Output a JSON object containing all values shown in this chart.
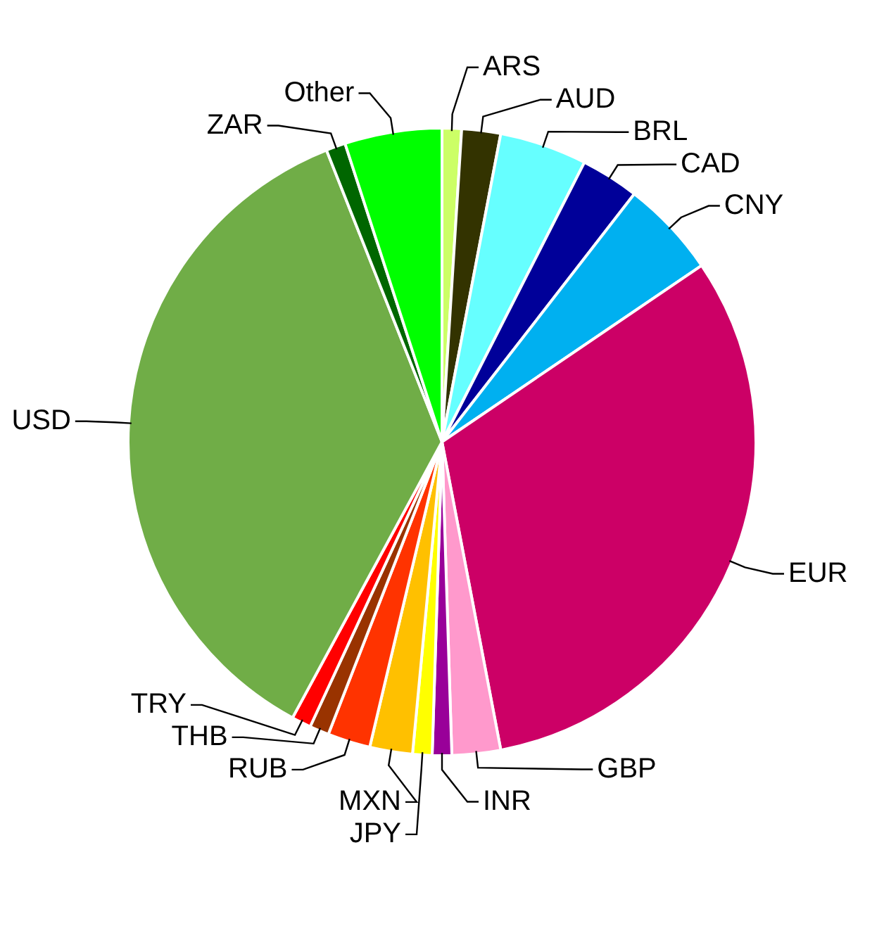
{
  "chart_data": {
    "type": "pie",
    "categories": [
      "ARS",
      "AUD",
      "BRL",
      "CAD",
      "CNY",
      "EUR",
      "GBP",
      "INR",
      "JPY",
      "MXN",
      "RUB",
      "THB",
      "TRY",
      "USD",
      "ZAR",
      "Other"
    ],
    "values": [
      1,
      2,
      4.5,
      3,
      5,
      31.5,
      2.5,
      1,
      1,
      2.2,
      2.2,
      1,
      1,
      36.1,
      1,
      5
    ],
    "colors": [
      "#ccff66",
      "#333300",
      "#66ffff",
      "#000099",
      "#00b0f0",
      "#cc0066",
      "#ff99cc",
      "#990099",
      "#ffff00",
      "#ffc000",
      "#ff3300",
      "#993300",
      "#ff0000",
      "#70ad47",
      "#006600",
      "#00ff00"
    ],
    "legend": false
  }
}
